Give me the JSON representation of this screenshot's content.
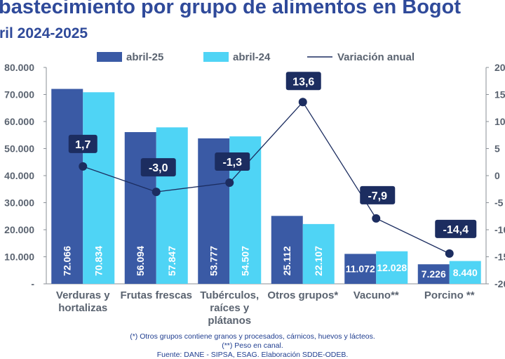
{
  "header": {
    "title": "bastecimiento por grupo de alimentos en Bogot",
    "subtitle": "ril 2024-2025"
  },
  "notes": {
    "line1": "(*) Otros grupos contiene granos y procesados, cárnicos, huevos y lácteos.",
    "line2": "(**) Peso en canal.",
    "line3": "Fuente: DANE - SIPSA, ESAG. Elaboración SDDE-ODEB."
  },
  "colors": {
    "title": "#2f4a9a",
    "bar_2025": "#3a5aa5",
    "bar_2024": "#4fd4f5",
    "line": "#1c2d60",
    "label_box": "#1c2d60",
    "axis_text": "#5a6370"
  },
  "chart_data": {
    "type": "bar",
    "categories": [
      [
        "Verduras y",
        "hortalizas"
      ],
      [
        "Frutas frescas"
      ],
      [
        "Tubérculos,",
        "raíces y",
        "plátanos"
      ],
      [
        "Otros grupos*"
      ],
      [
        "Vacuno**"
      ],
      [
        "Porcino **"
      ]
    ],
    "series": [
      {
        "name": "abril-25",
        "kind": "bar",
        "color": "#3a5aa5",
        "values": [
          72066,
          56094,
          53777,
          25112,
          11072,
          7226
        ],
        "labels": [
          "72.066",
          "56.094",
          "53.777",
          "25.112",
          "11.072",
          "7.226"
        ]
      },
      {
        "name": "abril-24",
        "kind": "bar",
        "color": "#4fd4f5",
        "values": [
          70834,
          57847,
          54507,
          22107,
          12028,
          8440
        ],
        "labels": [
          "70.834",
          "57.847",
          "54.507",
          "22.107",
          "12.028",
          "8.440"
        ]
      },
      {
        "name": "Variación anual",
        "kind": "line",
        "axis": "right",
        "color": "#1c2d60",
        "values": [
          1.7,
          -3.0,
          -1.3,
          13.6,
          -7.9,
          -14.4
        ],
        "labels": [
          "1,7",
          "-3,0",
          "-1,3",
          "13,6",
          "-7,9",
          "-14,4"
        ]
      }
    ],
    "y_left": {
      "ylim": [
        0,
        80000
      ],
      "ticks": [
        0,
        10000,
        20000,
        30000,
        40000,
        50000,
        60000,
        70000,
        80000
      ],
      "tick_labels": [
        "-",
        "10.000",
        "20.000",
        "30.000",
        "40.000",
        "50.000",
        "60.000",
        "70.000",
        "80.000"
      ]
    },
    "y_right": {
      "ylim": [
        -20,
        20
      ],
      "ticks": [
        -20,
        -15,
        -10,
        -5,
        0,
        5,
        10,
        15,
        20
      ],
      "tick_labels": [
        "-20",
        "-15",
        "-10",
        "-5",
        "0",
        "5",
        "10",
        "15",
        "20"
      ]
    },
    "legend_position": "top",
    "grid": false
  }
}
